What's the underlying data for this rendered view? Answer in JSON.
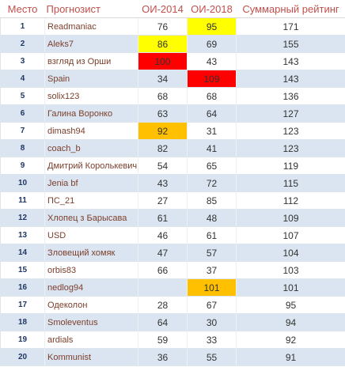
{
  "headers": {
    "place": "Место",
    "name": "Прогнозист",
    "oi2014": "ОИ-2014",
    "oi2018": "ОИ-2018",
    "total": "Суммарный рейтинг"
  },
  "colors": {
    "header_text": "#c0504d",
    "row_stripe": "#dbe5f1",
    "highlight_yellow": "#ffff00",
    "highlight_red": "#ff0000",
    "highlight_orange": "#ffc000"
  },
  "rows": [
    {
      "place": "1",
      "name": "Readmaniac",
      "oi2014": "76",
      "oi2018": "95",
      "total": "171"
    },
    {
      "place": "2",
      "name": "Aleks7",
      "oi2014": "86",
      "oi2018": "69",
      "total": "155"
    },
    {
      "place": "3",
      "name": "взгляд из Орши",
      "oi2014": "100",
      "oi2018": "43",
      "total": "143"
    },
    {
      "place": "4",
      "name": "Spain",
      "oi2014": "34",
      "oi2018": "109",
      "total": "143"
    },
    {
      "place": "5",
      "name": "solix123",
      "oi2014": "68",
      "oi2018": "68",
      "total": "136"
    },
    {
      "place": "6",
      "name": "Галина Воронко",
      "oi2014": "63",
      "oi2018": "64",
      "total": "127"
    },
    {
      "place": "7",
      "name": "dimash94",
      "oi2014": "92",
      "oi2018": "31",
      "total": "123"
    },
    {
      "place": "8",
      "name": "coach_b",
      "oi2014": "82",
      "oi2018": "41",
      "total": "123"
    },
    {
      "place": "9",
      "name": "Дмитрий Королькевич",
      "oi2014": "54",
      "oi2018": "65",
      "total": "119"
    },
    {
      "place": "10",
      "name": "Jenia bf",
      "oi2014": "43",
      "oi2018": "72",
      "total": "115"
    },
    {
      "place": "11",
      "name": "ПС_21",
      "oi2014": "27",
      "oi2018": "85",
      "total": "112"
    },
    {
      "place": "12",
      "name": "Хлопец з Барысава",
      "oi2014": "61",
      "oi2018": "48",
      "total": "109"
    },
    {
      "place": "13",
      "name": "USD",
      "oi2014": "46",
      "oi2018": "61",
      "total": "107"
    },
    {
      "place": "14",
      "name": "Зловещий хомяк",
      "oi2014": "47",
      "oi2018": "57",
      "total": "104"
    },
    {
      "place": "15",
      "name": "orbis83",
      "oi2014": "66",
      "oi2018": "37",
      "total": "103"
    },
    {
      "place": "16",
      "name": "nedlog94",
      "oi2014": "",
      "oi2018": "101",
      "total": "101"
    },
    {
      "place": "17",
      "name": "Одеколон",
      "oi2014": "28",
      "oi2018": "67",
      "total": "95"
    },
    {
      "place": "18",
      "name": "Smoleventus",
      "oi2014": "64",
      "oi2018": "30",
      "total": "94"
    },
    {
      "place": "19",
      "name": "ardials",
      "oi2014": "59",
      "oi2018": "33",
      "total": "92"
    },
    {
      "place": "20",
      "name": "Kommunist",
      "oi2014": "36",
      "oi2018": "55",
      "total": "91"
    }
  ],
  "highlights": [
    {
      "row": 0,
      "col": "oi2018",
      "color": "yellow"
    },
    {
      "row": 1,
      "col": "oi2014",
      "color": "yellow"
    },
    {
      "row": 2,
      "col": "oi2014",
      "color": "red"
    },
    {
      "row": 3,
      "col": "oi2018",
      "color": "red"
    },
    {
      "row": 6,
      "col": "oi2014",
      "color": "orange"
    },
    {
      "row": 15,
      "col": "oi2018",
      "color": "orange"
    }
  ]
}
